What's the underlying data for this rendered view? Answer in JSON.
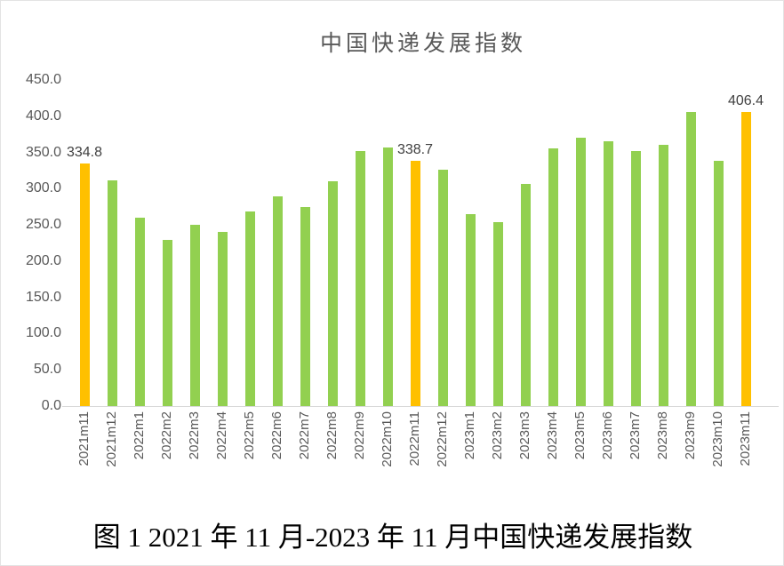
{
  "chart_data": {
    "type": "bar",
    "title": "中国快递发展指数",
    "categories": [
      "2021m11",
      "2021m12",
      "2022m1",
      "2022m2",
      "2022m3",
      "2022m4",
      "2022m5",
      "2022m6",
      "2022m7",
      "2022m8",
      "2022m9",
      "2022m10",
      "2022m11",
      "2022m12",
      "2023m1",
      "2023m2",
      "2023m3",
      "2023m4",
      "2023m5",
      "2023m6",
      "2023m7",
      "2023m8",
      "2023m9",
      "2023m10",
      "2023m11"
    ],
    "values": [
      334.8,
      311.5,
      260.0,
      229.0,
      250.0,
      240.5,
      268.5,
      289.5,
      274.5,
      310.0,
      351.5,
      356.5,
      338.7,
      326.0,
      265.0,
      253.5,
      307.0,
      355.5,
      370.5,
      366.0,
      351.5,
      361.0,
      405.5,
      338.0,
      406.4
    ],
    "highlight_indices": [
      0,
      12,
      24
    ],
    "data_labels": [
      {
        "index": 0,
        "text": "334.8"
      },
      {
        "index": 12,
        "text": "338.7"
      },
      {
        "index": 24,
        "text": "406.4"
      }
    ],
    "xlabel": "",
    "ylabel": "",
    "ylim": [
      0,
      450
    ],
    "ytick_labels": [
      "450.0",
      "400.0",
      "350.0",
      "300.0",
      "250.0",
      "200.0",
      "150.0",
      "100.0",
      "50.0",
      "0.0"
    ],
    "grid": false,
    "legend": null,
    "colors": {
      "bar_default": "#92D050",
      "bar_highlight": "#FFC000",
      "axis_text": "#595959",
      "title_text": "#595959",
      "data_label_text": "#404040",
      "baseline": "#d9d9d9"
    }
  },
  "caption": "图 1 2021 年 11 月-2023 年 11 月中国快递发展指数"
}
